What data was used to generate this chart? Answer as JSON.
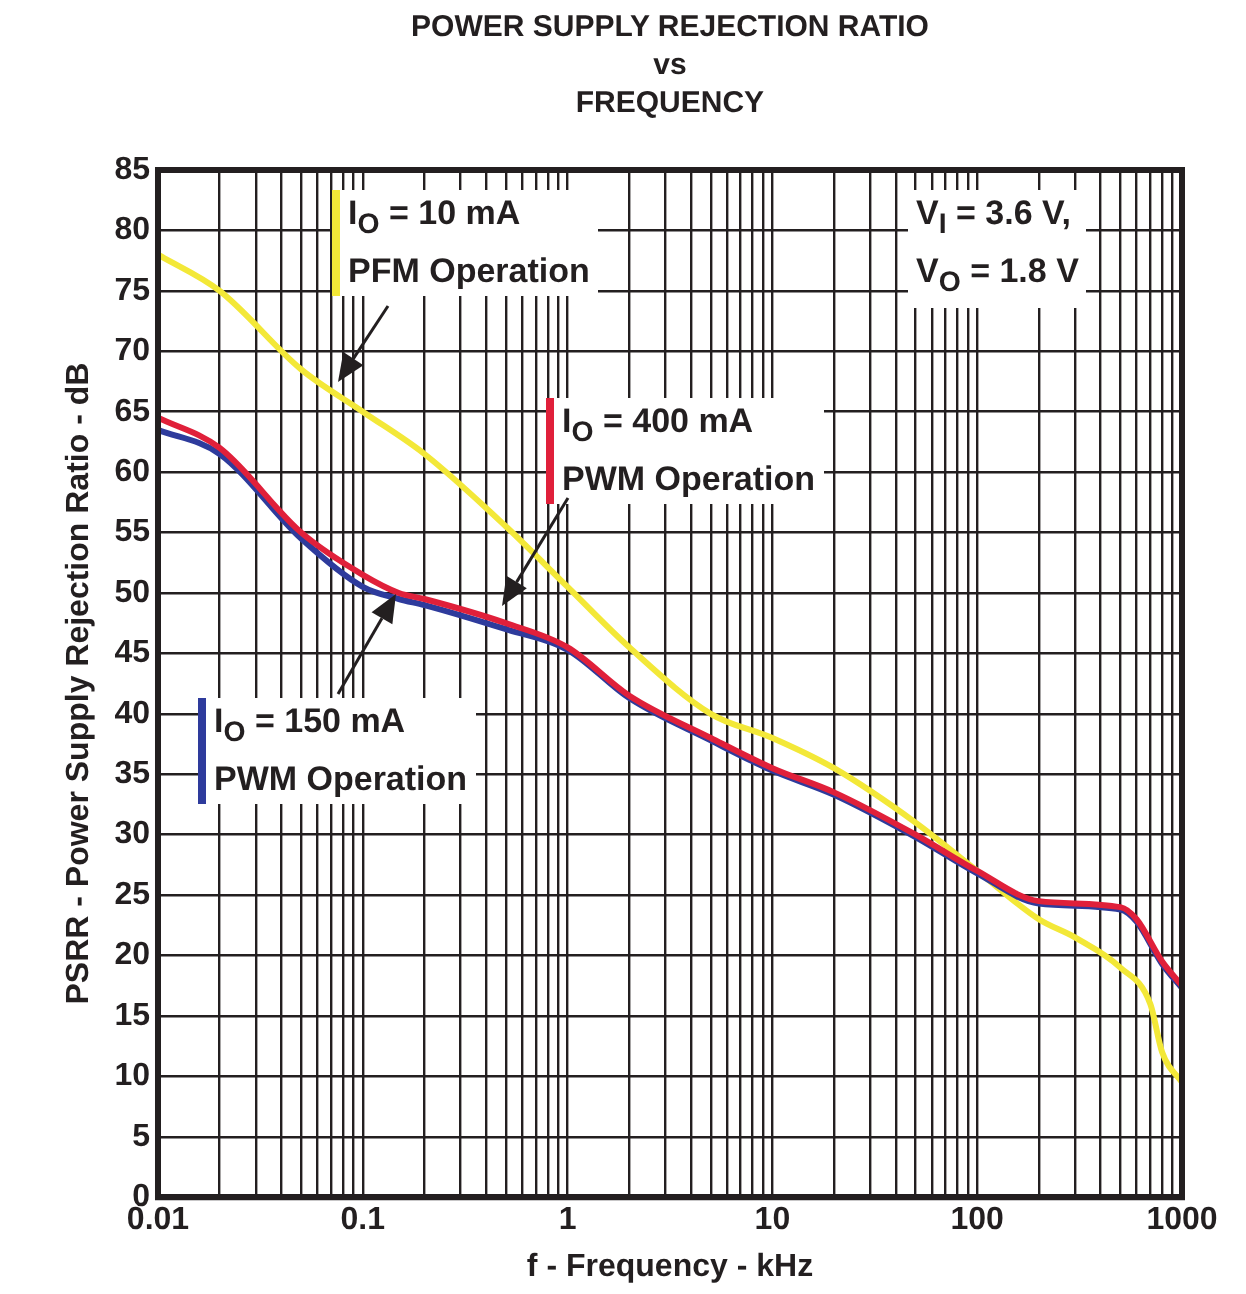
{
  "chart_data": {
    "type": "line",
    "title": "POWER SUPPLY REJECTION RATIO\nvs\nFREQUENCY",
    "xlabel": "f - Frequency - kHz",
    "ylabel": "PSRR - Power Supply Rejection Ratio - dB",
    "log": "x",
    "grid": true,
    "legend": false,
    "marker": "none",
    "line_style": "solid",
    "xlim": [
      0.01,
      1000
    ],
    "xticks": [
      0.01,
      0.1,
      1,
      10,
      100,
      1000
    ],
    "ylim": [
      0,
      85
    ],
    "yticks": [
      0,
      5,
      10,
      15,
      20,
      25,
      30,
      35,
      40,
      45,
      50,
      55,
      60,
      65,
      70,
      75,
      80,
      85
    ],
    "annotations": [
      "V$_{I}$ = 3.6 V,\nV$_{O}$ = 1.8 V"
    ],
    "series": [
      {
        "name": "I$_{O}$ = 10 mA\nPFM Operation",
        "color": "#f3e838",
        "x": [
          0.01,
          0.02,
          0.05,
          0.1,
          0.2,
          0.5,
          1,
          2,
          5,
          10,
          20,
          50,
          100,
          200,
          300,
          500,
          700,
          800,
          1000
        ],
        "values": [
          78,
          75,
          68.5,
          65,
          61.5,
          55.5,
          50.5,
          45.5,
          40,
          38,
          35.5,
          31,
          27,
          23,
          21.5,
          19,
          16,
          12,
          9.5
        ]
      },
      {
        "name": "I$_{O}$ = 150 mA\nPWM Operation",
        "color": "#2e3b9c",
        "x": [
          0.01,
          0.02,
          0.05,
          0.1,
          0.15,
          0.2,
          0.5,
          1,
          2,
          5,
          10,
          20,
          50,
          100,
          200,
          500,
          600,
          800,
          1000
        ],
        "values": [
          63.5,
          61.5,
          54.5,
          50.5,
          49.5,
          49,
          47,
          45.3,
          41.3,
          37.8,
          35.3,
          33.3,
          29.8,
          26.8,
          24.3,
          23.8,
          22.8,
          19.3,
          17.3
        ]
      },
      {
        "name": "I$_{O}$ = 400 mA\nPWM Operation",
        "color": "#e0203a",
        "x": [
          0.01,
          0.02,
          0.05,
          0.1,
          0.15,
          0.2,
          0.5,
          1,
          2,
          5,
          10,
          20,
          50,
          100,
          200,
          500,
          600,
          800,
          1000
        ],
        "values": [
          64.5,
          62,
          55,
          51.5,
          50,
          49.5,
          47.5,
          45.5,
          41.5,
          38,
          35.5,
          33.5,
          30,
          27,
          24.5,
          24,
          23,
          19.5,
          17.5
        ]
      }
    ]
  }
}
